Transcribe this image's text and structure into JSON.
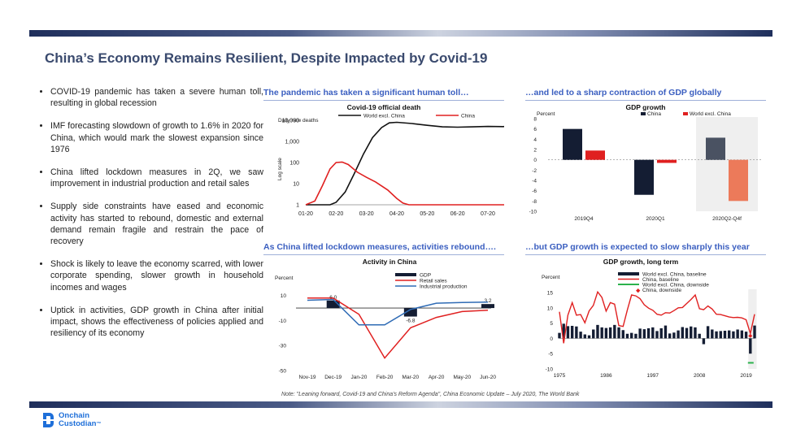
{
  "title": "China’s Economy Remains Resilient, Despite Impacted by Covid-19",
  "bullets": [
    "COVID-19 pandemic has taken a severe human toll, resulting in global recession",
    "IMF forecasting  slowdown of growth to 1.6% in 2020 for China, which would mark the slowest expansion since 1976",
    "China lifted lockdown measures in 2Q, we saw improvement in industrial production and retail sales",
    "Supply side constraints have eased and economic activity has started to rebound, domestic and external demand remain fragile and restrain the pace of recovery",
    "Shock is likely to leave the economy scarred, with lower corporate spending, slower growth in household incomes and wages",
    "Uptick in activities, GDP growth in China after initial impact, shows the effectiveness of policies applied and resiliency of its economy"
  ],
  "panels": {
    "p1": "The pandemic has taken a significant human toll…",
    "p2": "…and led to a sharp contraction of GDP globally",
    "p3": "As China lifted lockdown measures, activities rebound….",
    "p4": "…but GDP growth is expected to slow sharply this year"
  },
  "note": "Note: \"Leaning forward,  Covid-19 and China's Reform Agenda\", China Economic Update – July 2020, The World Bank",
  "logo": {
    "line1": "Onchain",
    "line2": "Custodian",
    "mark": "™"
  },
  "colors": {
    "navy": "#1f2f5c",
    "red": "#e02020",
    "black": "#111111",
    "panel_title": "#3b5fc0"
  },
  "chart_data": [
    {
      "type": "line",
      "title": "Covid-19 official death",
      "ylabel": "Daily new deaths",
      "ylabel2": "Log scale",
      "scale": "log",
      "yticks": [
        1,
        10,
        100,
        1000,
        10000
      ],
      "yticklabels": [
        "1",
        "10",
        "100",
        "1,000",
        "10,000"
      ],
      "xticks": [
        "01-20",
        "02-20",
        "03-20",
        "04-20",
        "05-20",
        "06-20",
        "07-20"
      ],
      "ylim": [
        1,
        10000
      ],
      "series": [
        {
          "name": "World excl. China",
          "color": "#111111",
          "points": [
            [
              0,
              1
            ],
            [
              0.8,
              1
            ],
            [
              1.0,
              1.3
            ],
            [
              1.3,
              4
            ],
            [
              1.6,
              30
            ],
            [
              1.9,
              250
            ],
            [
              2.2,
              1500
            ],
            [
              2.5,
              4500
            ],
            [
              2.75,
              7500
            ],
            [
              3.0,
              8000
            ],
            [
              3.5,
              7000
            ],
            [
              4.0,
              5800
            ],
            [
              4.5,
              4900
            ],
            [
              5.0,
              4700
            ],
            [
              5.5,
              4900
            ],
            [
              6.0,
              5100
            ],
            [
              6.5,
              5000
            ],
            [
              7.0,
              5500
            ]
          ]
        },
        {
          "name": "China",
          "color": "#e02020",
          "points": [
            [
              0,
              1
            ],
            [
              0.3,
              1.5
            ],
            [
              0.55,
              8
            ],
            [
              0.8,
              50
            ],
            [
              1.0,
              100
            ],
            [
              1.2,
              105
            ],
            [
              1.4,
              80
            ],
            [
              1.7,
              35
            ],
            [
              2.0,
              20
            ],
            [
              2.3,
              12
            ],
            [
              2.7,
              5
            ],
            [
              3.0,
              2
            ],
            [
              3.2,
              1.2
            ],
            [
              3.4,
              1
            ],
            [
              7.0,
              1
            ]
          ]
        }
      ]
    },
    {
      "type": "bar",
      "title": "GDP growth",
      "ylabel": "Percent",
      "ylim": [
        -10,
        8
      ],
      "yticks": [
        8,
        6,
        4,
        2,
        0,
        -2,
        -4,
        -6,
        -8,
        -10
      ],
      "categories": [
        "2019Q4",
        "2020Q1",
        "2020Q2-Q4f"
      ],
      "series": [
        {
          "name": "China",
          "color": "#141d33",
          "values": [
            6.0,
            -6.8,
            4.3
          ]
        },
        {
          "name": "World excl. China",
          "color": "#e02020",
          "values": [
            1.8,
            -0.6,
            -8.0
          ]
        }
      ],
      "forecast_highlight": "2020Q2-Q4f"
    },
    {
      "type": "bar+line",
      "title": "Activity in China",
      "ylabel": "Percent",
      "ylim": [
        -50,
        15
      ],
      "yticks": [
        10,
        -10,
        -30,
        -50
      ],
      "categories": [
        "Nov-19",
        "Dec-19",
        "Jan-20",
        "Feb-20",
        "Mar-20",
        "Apr-20",
        "May-20",
        "Jun-20"
      ],
      "series": [
        {
          "name": "GDP",
          "color": "#141d33",
          "type": "bar",
          "bars": [
            {
              "x": 1,
              "value": 6.0,
              "label": "6.0"
            },
            {
              "x": 4,
              "value": -6.8,
              "label": "-6.8"
            },
            {
              "x": 7.0,
              "value": 3.2,
              "label": "3.2"
            }
          ]
        },
        {
          "name": "Retail sales",
          "color": "#e02020",
          "type": "line",
          "values": [
            8.0,
            8.0,
            -5.0,
            -40.0,
            -15.8,
            -7.5,
            -2.8,
            -1.8
          ]
        },
        {
          "name": "Industrial production",
          "color": "#2f6bb5",
          "type": "line",
          "values": [
            6.2,
            6.9,
            -13.5,
            -13.5,
            -1.1,
            3.9,
            4.4,
            4.8
          ]
        }
      ]
    },
    {
      "type": "bar+line",
      "title": "GDP growth, long term",
      "ylabel": "Percent",
      "ylim": [
        -10,
        15
      ],
      "yticks": [
        15,
        10,
        5,
        0,
        -5,
        -10
      ],
      "xticks": [
        1975,
        1986,
        1997,
        2008,
        2019
      ],
      "years": [
        1975,
        2021
      ],
      "series": [
        {
          "name": "World excl. China, baseline",
          "color": "#141d33",
          "type": "bar",
          "values": [
            1.8,
            4.8,
            4.0,
            4.1,
            3.9,
            2.2,
            1.3,
            1.0,
            2.9,
            4.4,
            3.6,
            3.4,
            3.6,
            4.4,
            3.6,
            2.7,
            1.5,
            1.8,
            1.5,
            3.2,
            3.0,
            3.3,
            3.6,
            2.4,
            3.3,
            4.2,
            1.6,
            1.9,
            2.6,
            3.7,
            3.4,
            3.9,
            3.6,
            1.5,
            -1.9,
            4.0,
            2.9,
            2.3,
            2.4,
            2.5,
            2.6,
            2.3,
            2.9,
            2.6,
            2.2,
            -5.0,
            4.2
          ]
        },
        {
          "name": "China, baseline",
          "color": "#e02020",
          "type": "line",
          "values": [
            8.7,
            -1.6,
            7.6,
            11.7,
            7.6,
            7.8,
            5.1,
            9.0,
            10.8,
            15.2,
            13.4,
            8.9,
            11.7,
            11.2,
            4.2,
            3.9,
            9.3,
            14.2,
            13.9,
            13.0,
            11.0,
            9.9,
            9.2,
            7.9,
            7.6,
            8.4,
            8.3,
            9.1,
            10.0,
            10.1,
            11.4,
            12.7,
            14.2,
            9.7,
            9.4,
            10.6,
            9.6,
            7.9,
            7.8,
            7.4,
            7.0,
            6.8,
            6.9,
            6.7,
            6.1,
            1.6,
            7.9
          ]
        },
        {
          "name": "World excl. China, downside",
          "color": "#2bb24c",
          "type": "marker",
          "x": 2020,
          "value": -8.0
        },
        {
          "name": "China, downside",
          "color": "#e02020",
          "type": "marker",
          "x": 2020,
          "value": 1.0
        }
      ],
      "forecast_highlight": [
        2020,
        2021
      ]
    }
  ]
}
